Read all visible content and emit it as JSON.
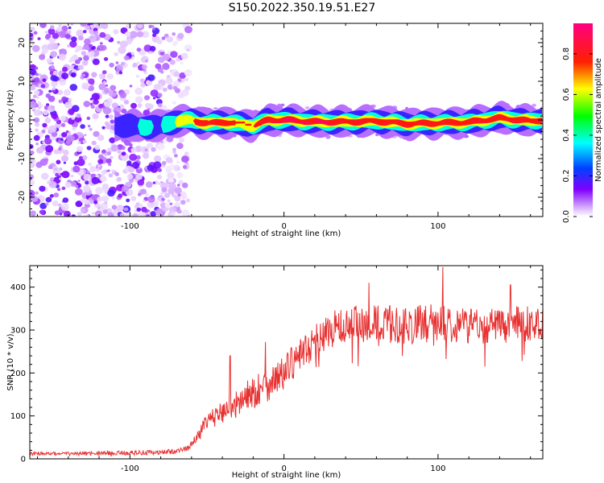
{
  "title": "S150.2022.350.19.51.E27",
  "chart_data": [
    {
      "type": "heatmap",
      "title": "",
      "xlabel": "Height of straight line (km)",
      "ylabel": "Frequency (Hz)",
      "xlim": [
        -165,
        168
      ],
      "ylim": [
        -25,
        25
      ],
      "xticks": [
        -100,
        0,
        100
      ],
      "xtick_labels": [
        "-100",
        "0",
        "100"
      ],
      "yticks": [
        -20,
        -10,
        0,
        10,
        20
      ],
      "ytick_labels": [
        "-20",
        "-10",
        "0",
        "10",
        "20"
      ],
      "grid": false,
      "colorbar": {
        "label": "Normalized spectral amplitude",
        "range": [
          0,
          0.95
        ],
        "ticks": [
          0.0,
          0.2,
          0.4,
          0.6,
          0.8
        ],
        "tick_labels": [
          "0.0",
          "0.2",
          "0.4",
          "0.6",
          "0.8"
        ],
        "colormap": "rainbow (white-violet-blue-cyan-green-yellow-red-magenta)"
      },
      "ridge": {
        "description": "strong narrow ridge near 0 Hz from about -110 km to 168 km",
        "x": [
          -110,
          -100,
          -90,
          -80,
          -72,
          -60,
          -50,
          -40,
          -30,
          -20,
          -10,
          0,
          20,
          40,
          60,
          80,
          100,
          120,
          140,
          160,
          168
        ],
        "frequency": [
          -1.5,
          -1.5,
          -1.8,
          -1.6,
          -0.5,
          0.0,
          -1.0,
          -0.5,
          -1.0,
          -1.5,
          0.0,
          0.0,
          -0.5,
          -0.5,
          -0.3,
          -1.0,
          -0.8,
          -0.6,
          0.5,
          -0.3,
          0.0
        ],
        "peak_amplitude": [
          0.3,
          0.35,
          0.4,
          0.35,
          0.6,
          0.8,
          0.85,
          0.85,
          0.8,
          0.8,
          0.9,
          0.95,
          0.95,
          0.9,
          0.9,
          0.85,
          0.9,
          0.9,
          0.9,
          0.9,
          0.85
        ]
      },
      "noise_region": {
        "description": "scattered low-amplitude violet noise across all frequencies",
        "x_range": [
          -165,
          -70
        ]
      }
    },
    {
      "type": "line",
      "title": "",
      "xlabel": "Height of straight line (km)",
      "ylabel": "SNR (10 * v/v)",
      "xlim": [
        -165,
        168
      ],
      "ylim": [
        0,
        450
      ],
      "xticks": [
        -100,
        0,
        100
      ],
      "xtick_labels": [
        "-100",
        "0",
        "100"
      ],
      "yticks": [
        0,
        100,
        200,
        300,
        400
      ],
      "ytick_labels": [
        "0",
        "100",
        "200",
        "300",
        "400"
      ],
      "grid": false,
      "color": "#e83030",
      "envelope": {
        "x": [
          -165,
          -140,
          -100,
          -80,
          -70,
          -62,
          -58,
          -50,
          -40,
          -30,
          -20,
          -10,
          0,
          10,
          20,
          30,
          40,
          60,
          80,
          100,
          120,
          140,
          160,
          168
        ],
        "y": [
          12,
          12,
          14,
          15,
          18,
          25,
          45,
          85,
          110,
          130,
          155,
          175,
          200,
          240,
          275,
          300,
          310,
          315,
          310,
          320,
          312,
          310,
          315,
          318
        ]
      },
      "noise_amplitude": {
        "x": [
          -165,
          -60,
          -50,
          -20,
          0,
          20,
          40,
          100,
          168
        ],
        "y": [
          4,
          6,
          20,
          40,
          40,
          40,
          45,
          45,
          40
        ]
      },
      "notable_peaks": [
        {
          "x": -35,
          "y": 240
        },
        {
          "x": -12,
          "y": 272
        },
        {
          "x": 55,
          "y": 410
        },
        {
          "x": 103,
          "y": 447
        },
        {
          "x": 147,
          "y": 405
        }
      ]
    }
  ]
}
